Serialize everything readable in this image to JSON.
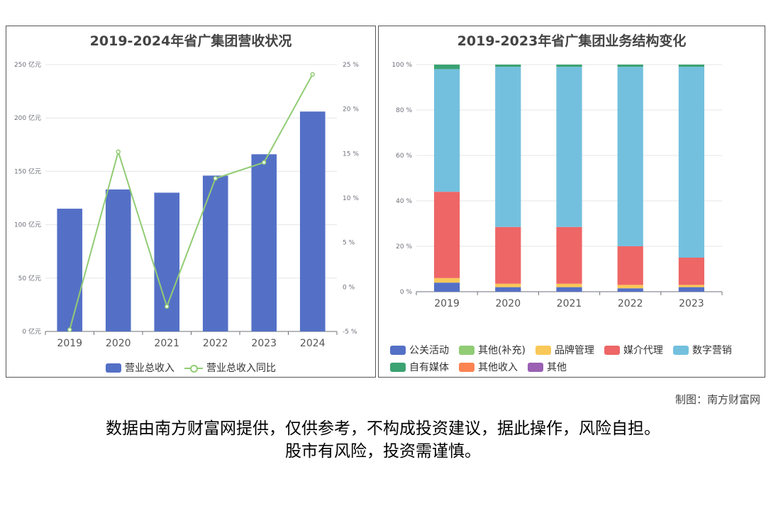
{
  "chart_data": [
    {
      "type": "bar",
      "title": "2019-2024年省广集团营收状况",
      "categories": [
        "2019",
        "2020",
        "2021",
        "2022",
        "2023",
        "2024"
      ],
      "series": [
        {
          "name": "营业总收入",
          "type": "bar",
          "axis": "left",
          "color": "#5470c6",
          "values": [
            115,
            133,
            130,
            146,
            166,
            206
          ]
        },
        {
          "name": "营业总收入同比",
          "type": "line",
          "axis": "right",
          "color": "#91cc75",
          "values": [
            -4.8,
            15.2,
            -2.2,
            12.2,
            14.0,
            23.9
          ]
        }
      ],
      "y_left": {
        "ticks": [
          "0 亿元",
          "50 亿元",
          "100 亿元",
          "150 亿元",
          "200 亿元",
          "250 亿元"
        ],
        "range": [
          0,
          250
        ]
      },
      "y_right": {
        "ticks": [
          "-5 %",
          "0 %",
          "5 %",
          "10 %",
          "15 %",
          "20 %",
          "25 %"
        ],
        "range": [
          -5,
          25
        ]
      },
      "legend_position": "bottom"
    },
    {
      "type": "bar",
      "stacked": true,
      "title": "2019-2023年省广集团业务结构变化",
      "categories": [
        "2019",
        "2020",
        "2021",
        "2022",
        "2023"
      ],
      "y_ticks": [
        "0 %",
        "20 %",
        "40 %",
        "60 %",
        "80 %",
        "100 %"
      ],
      "ylim": [
        0,
        100
      ],
      "series": [
        {
          "name": "公关活动",
          "color": "#5470c6",
          "values": [
            4,
            2,
            2,
            1.5,
            2
          ]
        },
        {
          "name": "其他(补充)",
          "color": "#91cc75",
          "values": [
            0,
            0,
            0,
            0,
            0
          ]
        },
        {
          "name": "品牌管理",
          "color": "#fac858",
          "values": [
            2,
            1.5,
            1.5,
            1.5,
            1
          ]
        },
        {
          "name": "媒介代理",
          "color": "#ee6666",
          "values": [
            38,
            25,
            25,
            17,
            12
          ]
        },
        {
          "name": "数字营销",
          "color": "#73c0de",
          "values": [
            54,
            70.5,
            70.5,
            79,
            84
          ]
        },
        {
          "name": "自有媒体",
          "color": "#3ba272",
          "values": [
            2,
            1,
            1,
            1,
            1
          ]
        },
        {
          "name": "其他收入",
          "color": "#fc8452",
          "values": [
            0,
            0,
            0,
            0,
            0
          ]
        },
        {
          "name": "其他",
          "color": "#9a60b4",
          "values": [
            0,
            0,
            0,
            0,
            0
          ]
        }
      ],
      "legend_position": "bottom"
    }
  ],
  "footer": {
    "credit": "制图：南方财富网",
    "disclaimer_line1": "数据由南方财富网提供，仅供参考，不构成投资建议，据此操作，风险自担。",
    "disclaimer_line2": "股市有风险，投资需谨慎。"
  }
}
